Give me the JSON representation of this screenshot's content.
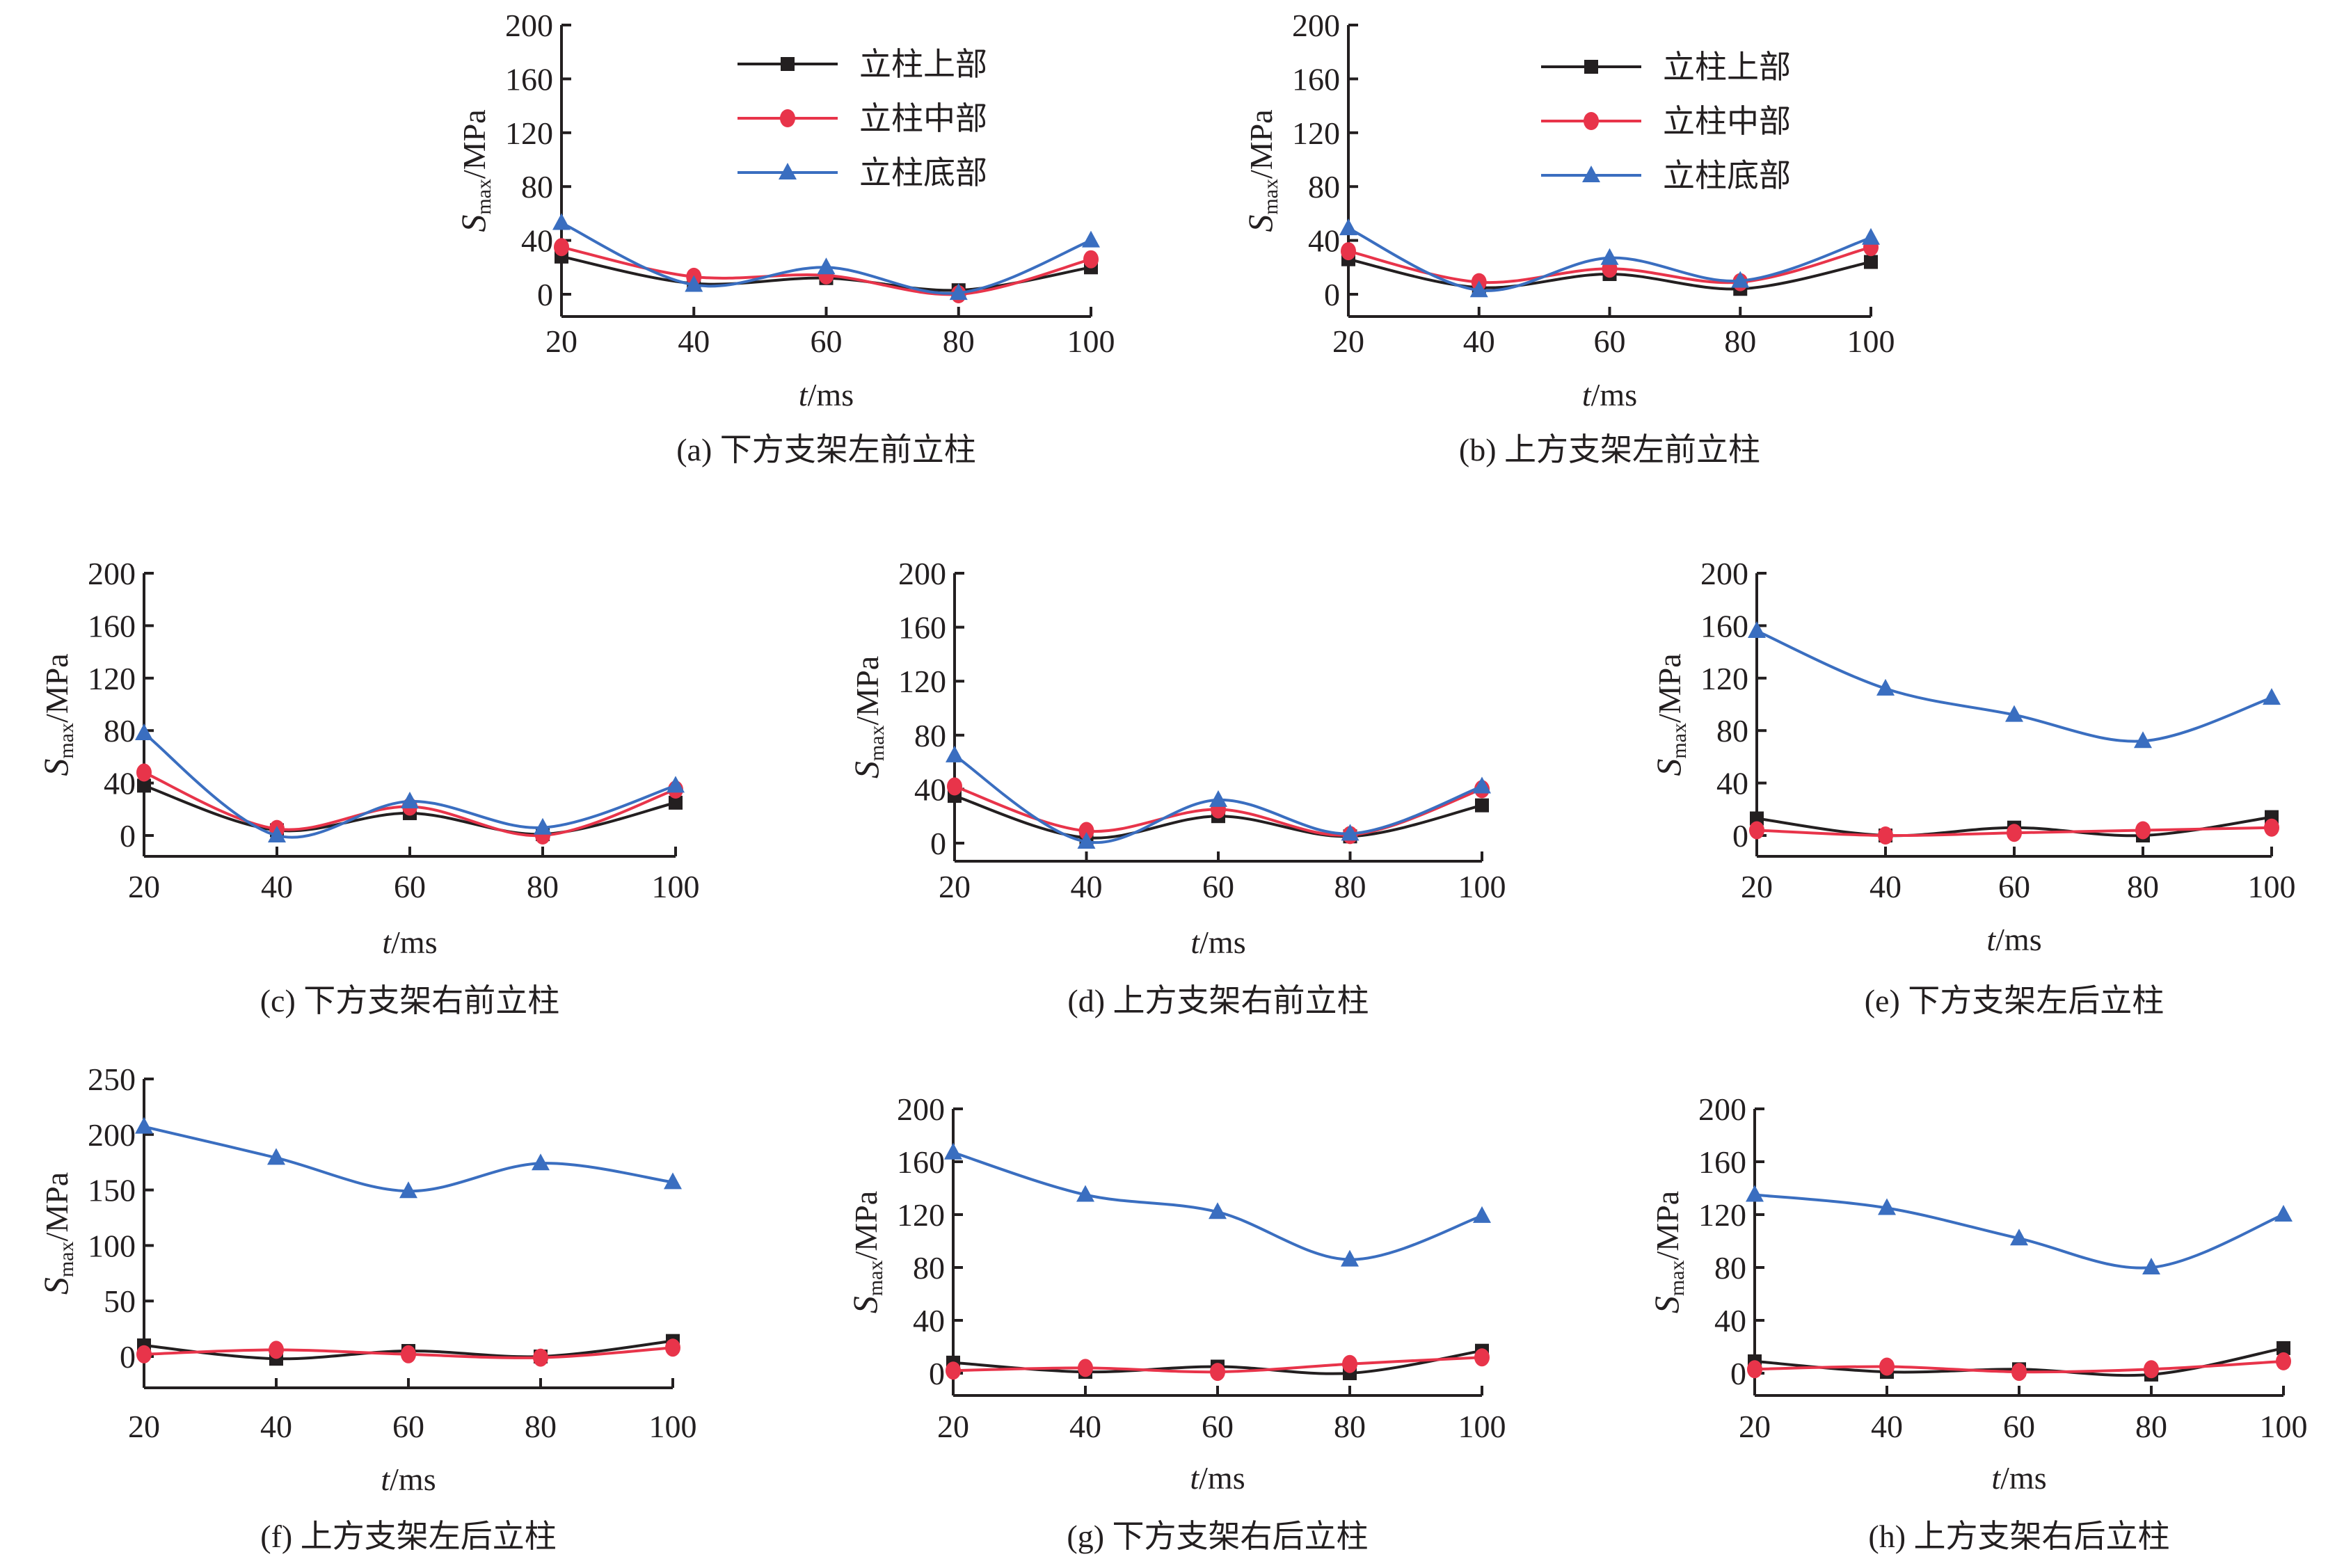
{
  "figure": {
    "series_colors": {
      "top": "#231f20",
      "middle": "#e8344a",
      "bottom": "#3a6ec0"
    }
  },
  "chart_data": [
    {
      "id": "a",
      "type": "line",
      "title": "(a) 下方支架左前立柱",
      "xlabel_italic": "t",
      "xlabel_unit": "/ms",
      "ylabel_main": "S",
      "ylabel_sub": "max",
      "ylabel_unit": "/MPa",
      "x": [
        20,
        40,
        60,
        80,
        100
      ],
      "x_tick_labels": [
        "20",
        "40",
        "60",
        "80",
        "100"
      ],
      "y_ticks": [
        0,
        40,
        80,
        120,
        160,
        200
      ],
      "y_tick_labels": [
        "0",
        "40",
        "80",
        "120",
        "160",
        "200"
      ],
      "ylim": [
        -8,
        200
      ],
      "legend": {
        "placement": "top-right",
        "entries": [
          "立柱上部",
          "立柱中部",
          "立柱底部"
        ]
      },
      "series": [
        {
          "name": "立柱上部",
          "marker": "square",
          "color": "#231f20",
          "values": [
            28,
            8,
            12,
            3,
            20
          ]
        },
        {
          "name": "立柱中部",
          "marker": "circle",
          "color": "#e8344a",
          "values": [
            35,
            13,
            14,
            0,
            26
          ]
        },
        {
          "name": "立柱底部",
          "marker": "triangle",
          "color": "#3a6ec0",
          "values": [
            53,
            7,
            20,
            1,
            40
          ]
        }
      ]
    },
    {
      "id": "b",
      "type": "line",
      "title": "(b) 上方支架左前立柱",
      "xlabel_italic": "t",
      "xlabel_unit": "/ms",
      "ylabel_main": "S",
      "ylabel_sub": "max",
      "ylabel_unit": "/MPa",
      "x": [
        20,
        40,
        60,
        80,
        100
      ],
      "x_tick_labels": [
        "20",
        "40",
        "60",
        "80",
        "100"
      ],
      "y_ticks": [
        0,
        40,
        80,
        120,
        160,
        200
      ],
      "y_tick_labels": [
        "0",
        "40",
        "80",
        "120",
        "160",
        "200"
      ],
      "ylim": [
        -8,
        200
      ],
      "legend": {
        "placement": "top-right",
        "entries": [
          "立柱上部",
          "立柱中部",
          "立柱底部"
        ]
      },
      "series": [
        {
          "name": "立柱上部",
          "marker": "square",
          "color": "#231f20",
          "values": [
            26,
            5,
            15,
            4,
            24
          ]
        },
        {
          "name": "立柱中部",
          "marker": "circle",
          "color": "#e8344a",
          "values": [
            32,
            9,
            19,
            9,
            35
          ]
        },
        {
          "name": "立柱底部",
          "marker": "triangle",
          "color": "#3a6ec0",
          "values": [
            49,
            3,
            27,
            10,
            42
          ]
        }
      ]
    },
    {
      "id": "c",
      "type": "line",
      "title": "(c) 下方支架右前立柱",
      "xlabel_italic": "t",
      "xlabel_unit": "/ms",
      "ylabel_main": "S",
      "ylabel_sub": "max",
      "ylabel_unit": "/MPa",
      "x": [
        20,
        40,
        60,
        80,
        100
      ],
      "x_tick_labels": [
        "20",
        "40",
        "60",
        "80",
        "100"
      ],
      "y_ticks": [
        0,
        40,
        80,
        120,
        160,
        200
      ],
      "y_tick_labels": [
        "0",
        "40",
        "80",
        "120",
        "160",
        "200"
      ],
      "ylim": [
        -8,
        200
      ],
      "series": [
        {
          "name": "立柱上部",
          "marker": "square",
          "color": "#231f20",
          "values": [
            38,
            4,
            17,
            1,
            25
          ]
        },
        {
          "name": "立柱中部",
          "marker": "circle",
          "color": "#e8344a",
          "values": [
            48,
            5,
            22,
            0,
            35
          ]
        },
        {
          "name": "立柱底部",
          "marker": "triangle",
          "color": "#3a6ec0",
          "values": [
            78,
            0,
            26,
            6,
            38
          ]
        }
      ]
    },
    {
      "id": "d",
      "type": "line",
      "title": "(d) 上方支架右前立柱",
      "xlabel_italic": "t",
      "xlabel_unit": "/ms",
      "ylabel_main": "S",
      "ylabel_sub": "max",
      "ylabel_unit": "/MPa",
      "x": [
        20,
        40,
        60,
        80,
        100
      ],
      "x_tick_labels": [
        "20",
        "40",
        "60",
        "80",
        "100"
      ],
      "y_ticks": [
        0,
        40,
        80,
        120,
        160,
        200
      ],
      "y_tick_labels": [
        "0",
        "40",
        "80",
        "120",
        "160",
        "200"
      ],
      "ylim": [
        -8,
        200
      ],
      "series": [
        {
          "name": "立柱上部",
          "marker": "square",
          "color": "#231f20",
          "values": [
            35,
            4,
            20,
            5,
            28
          ]
        },
        {
          "name": "立柱中部",
          "marker": "circle",
          "color": "#e8344a",
          "values": [
            42,
            9,
            25,
            6,
            40
          ]
        },
        {
          "name": "立柱底部",
          "marker": "triangle",
          "color": "#3a6ec0",
          "values": [
            65,
            1,
            32,
            7,
            42
          ]
        }
      ]
    },
    {
      "id": "e",
      "type": "line",
      "title": "(e) 下方支架左后立柱",
      "xlabel_italic": "t",
      "xlabel_unit": "/ms",
      "ylabel_main": "S",
      "ylabel_sub": "max",
      "ylabel_unit": "/MPa",
      "x": [
        20,
        40,
        60,
        80,
        100
      ],
      "x_tick_labels": [
        "20",
        "40",
        "60",
        "80",
        "100"
      ],
      "y_ticks": [
        0,
        40,
        80,
        120,
        160,
        200
      ],
      "y_tick_labels": [
        "0",
        "40",
        "80",
        "120",
        "160",
        "200"
      ],
      "ylim": [
        -8,
        200
      ],
      "series": [
        {
          "name": "立柱上部",
          "marker": "square",
          "color": "#231f20",
          "values": [
            13,
            0,
            6,
            0,
            14
          ]
        },
        {
          "name": "立柱中部",
          "marker": "circle",
          "color": "#e8344a",
          "values": [
            4,
            0,
            2,
            4,
            6
          ]
        },
        {
          "name": "立柱底部",
          "marker": "triangle",
          "color": "#3a6ec0",
          "values": [
            156,
            112,
            92,
            72,
            105
          ]
        }
      ]
    },
    {
      "id": "f",
      "type": "line",
      "title": "(f) 上方支架左后立柱",
      "xlabel_italic": "t",
      "xlabel_unit": "/ms",
      "ylabel_main": "S",
      "ylabel_sub": "max",
      "ylabel_unit": "/MPa",
      "x": [
        20,
        40,
        60,
        80,
        100
      ],
      "x_tick_labels": [
        "20",
        "40",
        "60",
        "80",
        "100"
      ],
      "y_ticks": [
        0,
        50,
        100,
        150,
        200,
        250
      ],
      "y_tick_labels": [
        "0",
        "50",
        "100",
        "150",
        "200",
        "250"
      ],
      "ylim": [
        -25,
        250
      ],
      "series": [
        {
          "name": "立柱上部",
          "marker": "square",
          "color": "#231f20",
          "values": [
            10,
            -2,
            5,
            0,
            14
          ]
        },
        {
          "name": "立柱中部",
          "marker": "circle",
          "color": "#e8344a",
          "values": [
            2,
            6,
            2,
            -1,
            8
          ]
        },
        {
          "name": "立柱底部",
          "marker": "triangle",
          "color": "#3a6ec0",
          "values": [
            207,
            179,
            149,
            174,
            157
          ]
        }
      ]
    },
    {
      "id": "g",
      "type": "line",
      "title": "(g) 下方支架右后立柱",
      "xlabel_italic": "t",
      "xlabel_unit": "/ms",
      "ylabel_main": "S",
      "ylabel_sub": "max",
      "ylabel_unit": "/MPa",
      "x": [
        20,
        40,
        60,
        80,
        100
      ],
      "x_tick_labels": [
        "20",
        "40",
        "60",
        "80",
        "100"
      ],
      "y_ticks": [
        0,
        40,
        80,
        120,
        160,
        200
      ],
      "y_tick_labels": [
        "0",
        "40",
        "80",
        "120",
        "160",
        "200"
      ],
      "ylim": [
        -8,
        200
      ],
      "series": [
        {
          "name": "立柱上部",
          "marker": "square",
          "color": "#231f20",
          "values": [
            8,
            1,
            5,
            0,
            17
          ]
        },
        {
          "name": "立柱中部",
          "marker": "circle",
          "color": "#e8344a",
          "values": [
            2,
            4,
            1,
            7,
            12
          ]
        },
        {
          "name": "立柱底部",
          "marker": "triangle",
          "color": "#3a6ec0",
          "values": [
            167,
            135,
            122,
            86,
            119
          ]
        }
      ]
    },
    {
      "id": "h",
      "type": "line",
      "title": "(h) 上方支架右后立柱",
      "xlabel_italic": "t",
      "xlabel_unit": "/ms",
      "ylabel_main": "S",
      "ylabel_sub": "max",
      "ylabel_unit": "/MPa",
      "x": [
        20,
        40,
        60,
        80,
        100
      ],
      "x_tick_labels": [
        "20",
        "40",
        "60",
        "80",
        "100"
      ],
      "y_ticks": [
        0,
        40,
        80,
        120,
        160,
        200
      ],
      "y_tick_labels": [
        "0",
        "40",
        "80",
        "120",
        "160",
        "200"
      ],
      "ylim": [
        -8,
        200
      ],
      "series": [
        {
          "name": "立柱上部",
          "marker": "square",
          "color": "#231f20",
          "values": [
            9,
            1,
            3,
            -1,
            19
          ]
        },
        {
          "name": "立柱中部",
          "marker": "circle",
          "color": "#e8344a",
          "values": [
            3,
            5,
            1,
            3,
            9
          ]
        },
        {
          "name": "立柱底部",
          "marker": "triangle",
          "color": "#3a6ec0",
          "values": [
            135,
            125,
            102,
            80,
            120
          ]
        }
      ]
    }
  ]
}
